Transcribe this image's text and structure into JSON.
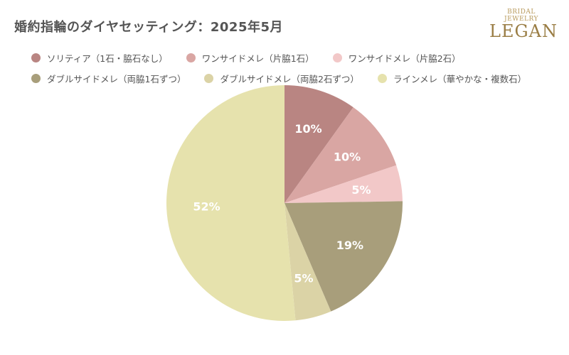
{
  "title": "婚約指輪のダイヤセッティング：2025年5月",
  "logo": {
    "top": "BRIDAL JEWELRY",
    "main": "LEGAN"
  },
  "chart_data": {
    "type": "pie",
    "categories": [
      "ソリティア（1石・脇石なし）",
      "ワンサイドメレ（片脇1石）",
      "ワンサイドメレ（片脇2石）",
      "ダブルサイドメレ（両脇1石ずつ）",
      "ダブルサイドメレ（両脇2石ずつ）",
      "ラインメレ（華やかな・複数石）"
    ],
    "values": [
      10,
      10,
      5,
      19,
      5,
      52
    ],
    "labels": [
      "10%",
      "10%",
      "5%",
      "19%",
      "5%",
      "52%"
    ],
    "colors": [
      "#b98582",
      "#d9a6a3",
      "#f2c8c8",
      "#a89e7b",
      "#dbd3a6",
      "#e6e2ad"
    ],
    "legend_position": "top",
    "start_angle": "12 o'clock, clockwise"
  }
}
